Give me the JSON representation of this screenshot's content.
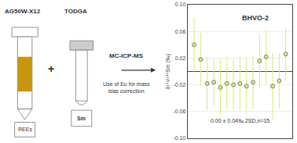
{
  "chart_data": {
    "type": "scatter",
    "title": "BHVO-2",
    "ylabel": "δ¹⁵²/¹⁴⁹Sm (‰)",
    "annotations": [
      "0.00 ± 0.04‰,2SD,n=15",
      "AG50W-X12",
      "TODGA",
      "REEs",
      "Sm",
      "+",
      "MC-ICP-MS",
      "Use of Eu for mass\nbias correction"
    ],
    "x": [
      1,
      2,
      3,
      4,
      5,
      6,
      7,
      8,
      9,
      10,
      11,
      12,
      13,
      14,
      15
    ],
    "values": [
      0.04,
      0.018,
      -0.018,
      -0.016,
      -0.024,
      -0.018,
      -0.02,
      -0.018,
      -0.022,
      -0.016,
      0.016,
      0.022,
      -0.022,
      -0.014,
      0.026
    ],
    "errors": [
      0.04,
      0.04,
      0.04,
      0.035,
      0.042,
      0.04,
      0.038,
      0.04,
      0.042,
      0.04,
      0.04,
      0.04,
      0.05,
      0.042,
      0.04
    ],
    "xlim": [
      0,
      16
    ],
    "ylim": [
      -0.1,
      0.1
    ],
    "yticks": [
      {
        "value": -0.1,
        "label": "-0.10"
      },
      -0.06,
      -0.02,
      0.02,
      0.06,
      {
        "value": 0.1,
        "label": "0.10"
      }
    ],
    "grid": true,
    "tick_labels": "y",
    "color": "#dde87a",
    "marker": "circle"
  }
}
